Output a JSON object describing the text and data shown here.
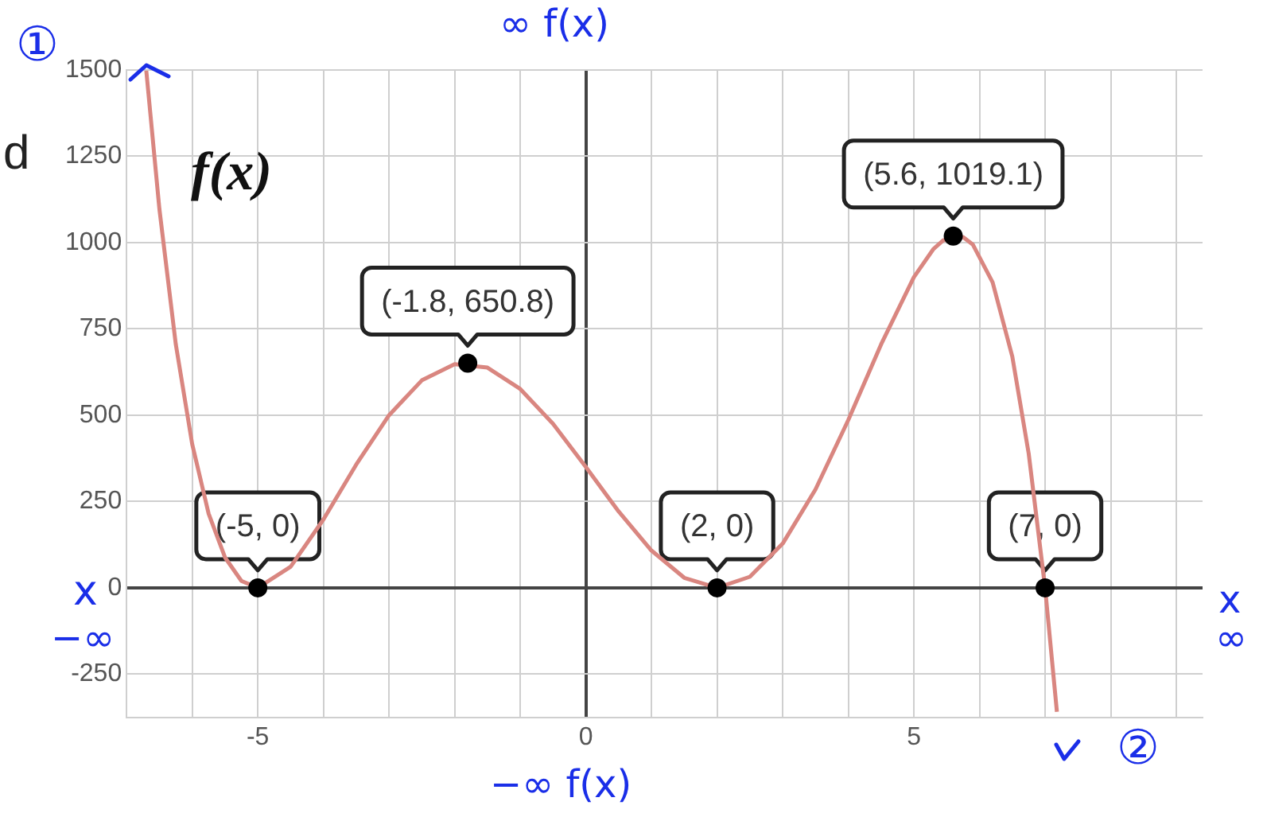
{
  "chart_data": {
    "type": "line",
    "annotations": [
      "d",
      "f(x)",
      "①",
      "∞ f(x)",
      "x",
      "−∞",
      "−∞ f(x)",
      "x",
      "∞",
      "②"
    ],
    "xlim": [
      -7,
      9.4
    ],
    "xticks": [
      {
        "value": -7,
        "label": null
      },
      {
        "value": -6,
        "label": null
      },
      -5,
      {
        "value": -4,
        "label": null
      },
      {
        "value": -3,
        "label": null
      },
      {
        "value": -2,
        "label": null
      },
      {
        "value": -1,
        "label": null
      },
      0,
      {
        "value": 1,
        "label": null
      },
      {
        "value": 2,
        "label": null
      },
      {
        "value": 3,
        "label": null
      },
      {
        "value": 4,
        "label": null
      },
      5,
      {
        "value": 6,
        "label": null
      },
      {
        "value": 7,
        "label": null
      },
      {
        "value": 8,
        "label": null
      },
      {
        "value": 9,
        "label": null
      }
    ],
    "ylim": [
      -375,
      1500
    ],
    "yticks": [
      -250,
      0,
      250,
      500,
      750,
      1000,
      1250,
      1500
    ],
    "grid": true,
    "legend": false,
    "series": [
      {
        "type": "line",
        "color": "#d98680",
        "marker": "none",
        "x": [
          -6.7,
          -6.5,
          -6.25,
          -6,
          -5.75,
          -5.5,
          -5.25,
          -5,
          -4.5,
          -4,
          -3.5,
          -3,
          -2.5,
          -2,
          -1.5,
          -1,
          -0.5,
          0,
          0.5,
          1,
          1.5,
          2,
          2.5,
          3,
          3.5,
          4,
          4.5,
          5,
          5.3,
          5.45,
          5.75,
          5.9,
          6.2,
          6.5,
          6.75,
          7,
          7.18
        ],
        "values": [
          1498,
          1097,
          705,
          416,
          215,
          88,
          20,
          0,
          61,
          198,
          357,
          500,
          601,
          648,
          638,
          576,
          475,
          350,
          221,
          108,
          29,
          0,
          32,
          128,
          285,
          486,
          705,
          900,
          982,
          1007,
          1016,
          994,
          885,
          670,
          389,
          0,
          -359
        ]
      },
      {
        "type": "scatter",
        "color": "#000000",
        "marker": "circle",
        "x": [
          -5,
          -1.8,
          2,
          5.6,
          7
        ],
        "values": [
          0,
          650.8,
          0,
          1019.1,
          0
        ],
        "value_labels": [
          "(-5, 0)",
          "(-1.8, 650.8)",
          "(2, 0)",
          "(5.6, 1019.1)",
          "(7, 0)"
        ]
      }
    ]
  }
}
